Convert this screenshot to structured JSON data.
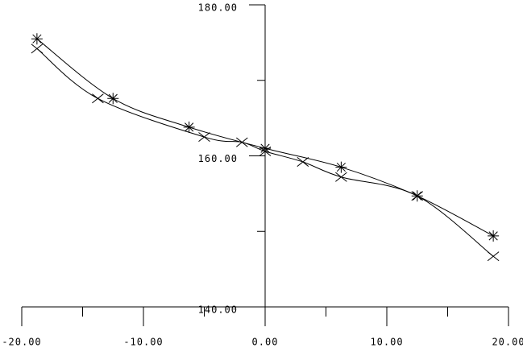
{
  "chart_data": {
    "type": "line",
    "xlim": [
      -20,
      20
    ],
    "ylim": [
      140,
      180
    ],
    "xticks": [
      {
        "value": -20,
        "label": "-20.00"
      },
      {
        "value": -10,
        "label": "-10.00"
      },
      {
        "value": 0,
        "label": "0.00"
      },
      {
        "value": 10,
        "label": "10.00"
      },
      {
        "value": 20,
        "label": "20.00"
      }
    ],
    "xminorticks": [
      -15,
      -5,
      5,
      15
    ],
    "yticks": [
      {
        "value": 140,
        "label": "140.00"
      },
      {
        "value": 160,
        "label": "160.00"
      },
      {
        "value": 180,
        "label": "180.00"
      }
    ],
    "yminorticks": [
      150,
      170
    ],
    "series": [
      {
        "marker": "asterisk",
        "color": "#000000",
        "x": [
          -18.75,
          -12.5,
          -6.25,
          0,
          6.25,
          12.5,
          18.75
        ],
        "values": [
          175.5,
          167.6,
          163.8,
          161.0,
          158.5,
          154.7,
          149.4
        ]
      },
      {
        "marker": "x",
        "color": "#000000",
        "x": [
          -18.75,
          -13.75,
          -5.0,
          -1.9,
          0,
          3.1,
          6.25,
          12.5,
          18.75
        ],
        "values": [
          174.2,
          167.6,
          162.5,
          161.8,
          160.6,
          159.2,
          157.2,
          154.7,
          146.7
        ]
      }
    ]
  }
}
